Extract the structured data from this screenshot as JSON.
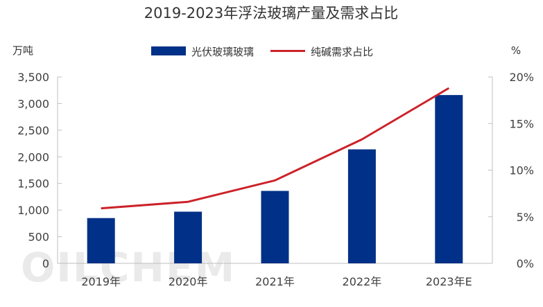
{
  "watermark": "OILCHEM",
  "chart_data": {
    "type": "bar",
    "title": "2019-2023年浮法玻璃产量及需求占比",
    "ylabel": "万吨",
    "y2label": "%",
    "categories": [
      "2019年",
      "2020年",
      "2021年",
      "2022年",
      "2023年E"
    ],
    "ylim": [
      0,
      3500
    ],
    "yticks": [
      "0",
      "500",
      "1,000",
      "1,500",
      "2,000",
      "2,500",
      "3,000",
      "3,500"
    ],
    "y2lim": [
      0,
      20
    ],
    "y2ticks": [
      "0%",
      "5%",
      "10%",
      "15%",
      "20%"
    ],
    "series": [
      {
        "name": "光伏玻璃玻璃",
        "type": "bar",
        "axis": "left",
        "color": "#003087",
        "values": [
          850,
          970,
          1360,
          2140,
          3160
        ]
      },
      {
        "name": "纯碱需求占比",
        "type": "line",
        "axis": "right",
        "color": "#cc2229",
        "values": [
          5.9,
          6.6,
          8.9,
          13.3,
          18.8
        ]
      }
    ],
    "legend": "top-center",
    "grid": false
  }
}
